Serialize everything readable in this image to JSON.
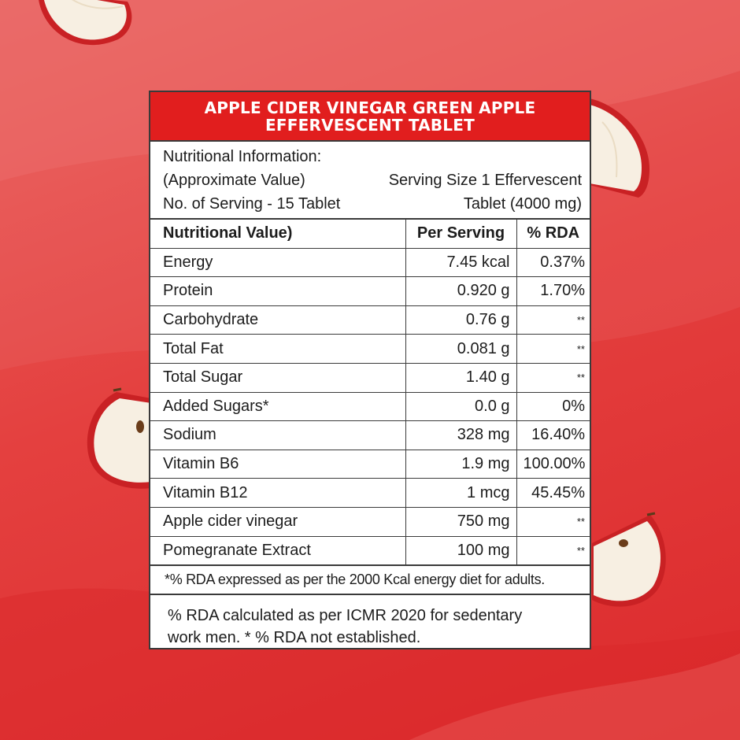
{
  "panel": {
    "title_line1": "APPLE CIDER VINEGAR GREEN APPLE",
    "title_line2": "EFFERVESCENT TABLET",
    "info": {
      "line1": "Nutritional Information:",
      "line2_left": "(Approximate Value)",
      "line2_right": "Serving Size 1 Effervescent",
      "line3_left": "No. of Serving - 15 Tablet",
      "line3_right": "Tablet (4000 mg)"
    },
    "table": {
      "headers": [
        "Nutritional Value)",
        "Per Serving",
        "% RDA"
      ],
      "rows": [
        {
          "name": "Energy",
          "per_serving": "7.45 kcal",
          "rda": "0.37%"
        },
        {
          "name": "Protein",
          "per_serving": "0.920 g",
          "rda": "1.70%"
        },
        {
          "name": "Carbohydrate",
          "per_serving": "0.76 g",
          "rda": "**"
        },
        {
          "name": "Total Fat",
          "per_serving": "0.081 g",
          "rda": "**"
        },
        {
          "name": "Total Sugar",
          "per_serving": "1.40 g",
          "rda": "**"
        },
        {
          "name": "Added Sugars*",
          "per_serving": "0.0 g",
          "rda": "0%"
        },
        {
          "name": "Sodium",
          "per_serving": "328 mg",
          "rda": "16.40%"
        },
        {
          "name": "Vitamin B6",
          "per_serving": "1.9 mg",
          "rda": "100.00%"
        },
        {
          "name": "Vitamin B12",
          "per_serving": "1 mcg",
          "rda": "45.45%"
        },
        {
          "name": "Apple cider vinegar",
          "per_serving": "750 mg",
          "rda": "**"
        },
        {
          "name": "Pomegranate Extract",
          "per_serving": "100 mg",
          "rda": "**"
        }
      ]
    },
    "footnote1": "*% RDA expressed as per the 2000 Kcal energy diet for adults.",
    "footnote2_line1": "% RDA calculated as per ICMR 2020 for sedentary",
    "footnote2_line2": "work men. * % RDA not established."
  },
  "colors": {
    "header_red": "#e11e1e",
    "background_red": "#e4403f",
    "panel_white": "#ffffff",
    "apple_flesh": "#f6eee0"
  },
  "decorations": [
    "apple-slice-top-left",
    "apple-slice-right-top",
    "apple-slice-left-middle",
    "apple-slice-right-bottom"
  ]
}
